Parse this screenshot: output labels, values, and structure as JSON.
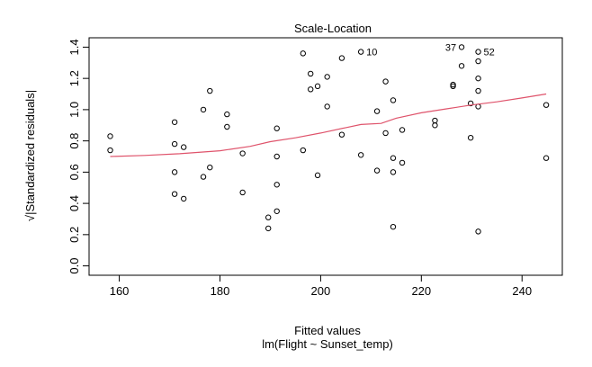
{
  "chart_data": {
    "type": "scatter",
    "title": "Scale-Location",
    "xlabel": "Fitted values",
    "subtitle": "lm(Flight ~ Sunset_temp)",
    "ylabel": "√|Standardized residuals|",
    "xlim": [
      154,
      248
    ],
    "ylim": [
      -0.06,
      1.46
    ],
    "x_ticks": [
      160,
      180,
      200,
      220,
      240
    ],
    "x_tick_labels": [
      "160",
      "180",
      "200",
      "220",
      "240"
    ],
    "y_ticks": [
      0.0,
      0.2,
      0.4,
      0.6,
      0.8,
      1.0,
      1.2,
      1.4
    ],
    "y_tick_labels": [
      "0.0",
      "0.2",
      "0.4",
      "0.6",
      "0.8",
      "1.0",
      "1.2",
      "1.4"
    ],
    "grid": false,
    "point_color": "#000000",
    "smooth_color": "#df536b",
    "points": [
      [
        158.2,
        0.83
      ],
      [
        158.2,
        0.74
      ],
      [
        171.0,
        0.92
      ],
      [
        171.0,
        0.78
      ],
      [
        171.0,
        0.6
      ],
      [
        171.0,
        0.46
      ],
      [
        172.8,
        0.76
      ],
      [
        172.8,
        0.43
      ],
      [
        176.7,
        1.0
      ],
      [
        176.7,
        0.57
      ],
      [
        178.0,
        1.12
      ],
      [
        178.0,
        0.63
      ],
      [
        181.4,
        0.97
      ],
      [
        181.4,
        0.89
      ],
      [
        184.5,
        0.72
      ],
      [
        184.5,
        0.47
      ],
      [
        189.6,
        0.31
      ],
      [
        189.6,
        0.24
      ],
      [
        191.3,
        0.88
      ],
      [
        191.3,
        0.7
      ],
      [
        191.3,
        0.52
      ],
      [
        191.3,
        0.35
      ],
      [
        196.5,
        1.36
      ],
      [
        196.5,
        0.74
      ],
      [
        198.0,
        1.23
      ],
      [
        198.0,
        1.13
      ],
      [
        199.4,
        1.15
      ],
      [
        199.4,
        0.58
      ],
      [
        201.3,
        1.21
      ],
      [
        201.3,
        1.02
      ],
      [
        204.2,
        1.33
      ],
      [
        204.2,
        0.84
      ],
      [
        208.0,
        1.37
      ],
      [
        208.0,
        0.71
      ],
      [
        211.2,
        0.99
      ],
      [
        211.2,
        0.61
      ],
      [
        212.9,
        1.18
      ],
      [
        212.9,
        0.85
      ],
      [
        214.4,
        1.06
      ],
      [
        214.4,
        0.69
      ],
      [
        214.4,
        0.6
      ],
      [
        214.4,
        0.25
      ],
      [
        216.2,
        0.87
      ],
      [
        216.2,
        0.66
      ],
      [
        222.7,
        0.93
      ],
      [
        222.7,
        0.9
      ],
      [
        226.3,
        1.16
      ],
      [
        226.3,
        1.15
      ],
      [
        228.0,
        1.4
      ],
      [
        228.0,
        1.28
      ],
      [
        229.8,
        1.04
      ],
      [
        229.8,
        0.82
      ],
      [
        231.3,
        1.37
      ],
      [
        231.3,
        1.31
      ],
      [
        231.3,
        1.2
      ],
      [
        231.3,
        1.12
      ],
      [
        231.3,
        1.02
      ],
      [
        231.3,
        0.22
      ],
      [
        244.8,
        1.03
      ],
      [
        244.8,
        0.69
      ]
    ],
    "point_labels": [
      {
        "x": 208.0,
        "y": 1.37,
        "label": "10"
      },
      {
        "x": 228.0,
        "y": 1.4,
        "label": "37"
      },
      {
        "x": 231.3,
        "y": 1.37,
        "label": "52"
      }
    ],
    "smooth_line": [
      [
        158.2,
        0.7
      ],
      [
        165.0,
        0.707
      ],
      [
        172.0,
        0.718
      ],
      [
        180.0,
        0.737
      ],
      [
        186.0,
        0.765
      ],
      [
        190.0,
        0.795
      ],
      [
        195.0,
        0.82
      ],
      [
        200.0,
        0.85
      ],
      [
        205.0,
        0.885
      ],
      [
        208.0,
        0.905
      ],
      [
        212.0,
        0.912
      ],
      [
        215.0,
        0.945
      ],
      [
        220.0,
        0.98
      ],
      [
        225.0,
        1.005
      ],
      [
        230.0,
        1.03
      ],
      [
        235.0,
        1.05
      ],
      [
        240.0,
        1.075
      ],
      [
        244.8,
        1.1
      ]
    ]
  }
}
